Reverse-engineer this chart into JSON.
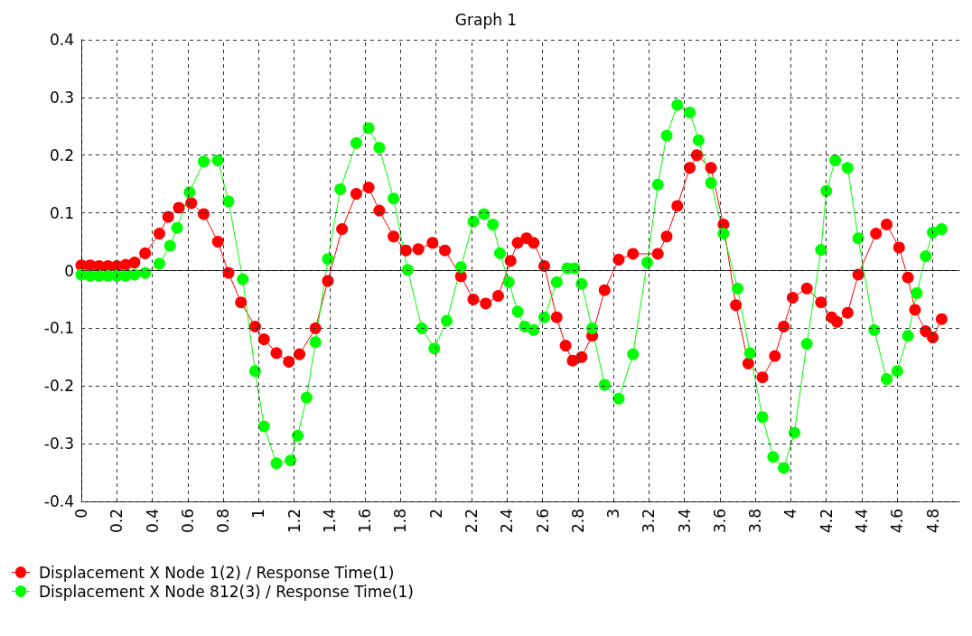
{
  "chart_data": {
    "type": "line",
    "title": "Graph 1",
    "xlim": [
      0,
      4.95
    ],
    "xticks": [
      0,
      0.2,
      0.4,
      0.6,
      0.8,
      1,
      1.2,
      1.4,
      1.6,
      1.8,
      2,
      2.2,
      2.4,
      2.6,
      2.8,
      3,
      3.2,
      3.4,
      3.6,
      3.8,
      4,
      4.2,
      4.4,
      4.6,
      4.8
    ],
    "ylim": [
      -0.4,
      0.4
    ],
    "yticks": [
      -0.4,
      -0.3,
      -0.2,
      -0.1,
      0,
      0.1,
      0.2,
      0.3,
      0.4
    ],
    "grid": true,
    "legend": "bottom left",
    "marker": "circle",
    "line_style": "solid",
    "series": [
      {
        "name": "Displacement X Node 1(2) / Response Time(1)",
        "color": "#ff0000",
        "x": [
          0,
          0.05,
          0.1,
          0.15,
          0.2,
          0.25,
          0.3,
          0.36,
          0.44,
          0.49,
          0.55,
          0.62,
          0.69,
          0.77,
          0.83,
          0.9,
          0.98,
          1.03,
          1.1,
          1.17,
          1.23,
          1.32,
          1.39,
          1.47,
          1.55,
          1.62,
          1.68,
          1.76,
          1.83,
          1.9,
          1.98,
          2.05,
          2.14,
          2.21,
          2.28,
          2.35,
          2.42,
          2.46,
          2.51,
          2.55,
          2.61,
          2.68,
          2.73,
          2.77,
          2.82,
          2.88,
          2.95,
          3.03,
          3.11,
          3.25,
          3.3,
          3.36,
          3.43,
          3.47,
          3.55,
          3.62,
          3.69,
          3.76,
          3.84,
          3.91,
          3.96,
          4.01,
          4.09,
          4.17,
          4.23,
          4.26,
          4.32,
          4.38,
          4.48,
          4.54,
          4.61,
          4.66,
          4.7,
          4.76,
          4.8,
          4.85
        ],
        "values": [
          0.009,
          0.009,
          0.008,
          0.008,
          0.008,
          0.01,
          0.014,
          0.03,
          0.064,
          0.093,
          0.109,
          0.117,
          0.098,
          0.05,
          -0.004,
          -0.055,
          -0.097,
          -0.119,
          -0.143,
          -0.158,
          -0.145,
          -0.1,
          -0.018,
          0.072,
          0.133,
          0.144,
          0.104,
          0.059,
          0.035,
          0.037,
          0.048,
          0.035,
          -0.01,
          -0.05,
          -0.057,
          -0.044,
          0.017,
          0.048,
          0.056,
          0.048,
          0.008,
          -0.081,
          -0.13,
          -0.156,
          -0.15,
          -0.113,
          -0.034,
          0.019,
          0.029,
          0.029,
          0.059,
          0.112,
          0.178,
          0.2,
          0.178,
          0.08,
          -0.06,
          -0.161,
          -0.185,
          -0.148,
          -0.097,
          -0.047,
          -0.031,
          -0.055,
          -0.081,
          -0.089,
          -0.073,
          -0.007,
          0.064,
          0.08,
          0.04,
          -0.012,
          -0.068,
          -0.105,
          -0.116,
          -0.084
        ]
      },
      {
        "name": "Displacement X Node 812(3) / Response Time(1)",
        "color": "#00ff00",
        "x": [
          0,
          0.05,
          0.1,
          0.15,
          0.2,
          0.25,
          0.3,
          0.36,
          0.44,
          0.5,
          0.54,
          0.61,
          0.69,
          0.77,
          0.83,
          0.91,
          0.98,
          1.03,
          1.1,
          1.18,
          1.22,
          1.27,
          1.32,
          1.39,
          1.46,
          1.55,
          1.62,
          1.68,
          1.76,
          1.84,
          1.92,
          1.99,
          2.06,
          2.14,
          2.21,
          2.27,
          2.32,
          2.36,
          2.41,
          2.46,
          2.5,
          2.55,
          2.61,
          2.68,
          2.74,
          2.78,
          2.82,
          2.88,
          2.95,
          3.03,
          3.11,
          3.19,
          3.25,
          3.3,
          3.36,
          3.43,
          3.48,
          3.55,
          3.62,
          3.7,
          3.77,
          3.84,
          3.9,
          3.96,
          4.02,
          4.09,
          4.17,
          4.2,
          4.25,
          4.32,
          4.38,
          4.47,
          4.54,
          4.6,
          4.66,
          4.71,
          4.76,
          4.8,
          4.85
        ],
        "values": [
          -0.007,
          -0.009,
          -0.009,
          -0.009,
          -0.009,
          -0.009,
          -0.007,
          -0.004,
          0.012,
          0.043,
          0.074,
          0.136,
          0.189,
          0.191,
          0.12,
          -0.015,
          -0.174,
          -0.27,
          -0.334,
          -0.329,
          -0.286,
          -0.22,
          -0.124,
          0.02,
          0.141,
          0.221,
          0.247,
          0.213,
          0.125,
          0.001,
          -0.1,
          -0.135,
          -0.087,
          0.006,
          0.085,
          0.098,
          0.08,
          0.03,
          -0.02,
          -0.071,
          -0.097,
          -0.103,
          -0.081,
          -0.02,
          0.004,
          0.004,
          -0.023,
          -0.1,
          -0.198,
          -0.222,
          -0.145,
          0.014,
          0.149,
          0.234,
          0.287,
          0.274,
          0.226,
          0.152,
          0.064,
          -0.031,
          -0.143,
          -0.254,
          -0.323,
          -0.342,
          -0.281,
          -0.127,
          0.036,
          0.138,
          0.191,
          0.178,
          0.056,
          -0.103,
          -0.188,
          -0.174,
          -0.113,
          -0.039,
          0.025,
          0.066,
          0.072
        ]
      }
    ]
  }
}
